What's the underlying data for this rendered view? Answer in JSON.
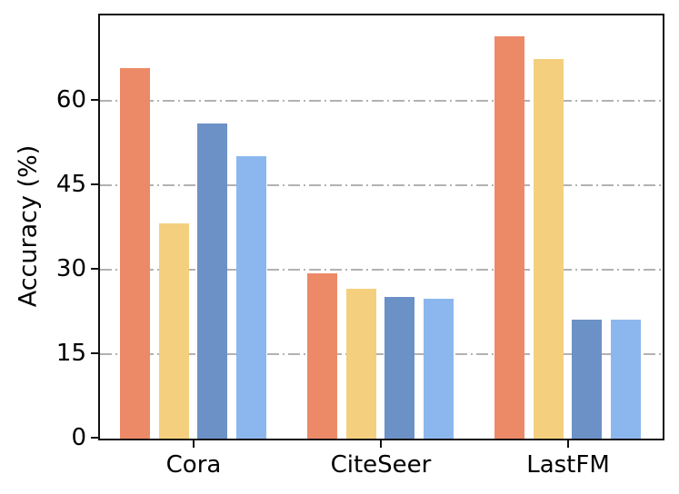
{
  "chart_data": {
    "type": "bar",
    "title": "",
    "xlabel": "",
    "ylabel": "Accuracy (%)",
    "categories": [
      "Cora",
      "CiteSeer",
      "LastFM"
    ],
    "series": [
      {
        "name": "orange",
        "color": "#EC8A67",
        "values": [
          65.8,
          29.3,
          71.3
        ]
      },
      {
        "name": "yellow",
        "color": "#F4D07E",
        "values": [
          38.2,
          26.5,
          67.4
        ]
      },
      {
        "name": "dark-blue",
        "color": "#6C91C6",
        "values": [
          55.9,
          25.1,
          21.1
        ]
      },
      {
        "name": "light-blue",
        "color": "#8CB7EE",
        "values": [
          50.1,
          24.7,
          21.0
        ]
      }
    ],
    "ylim": [
      0,
      75
    ],
    "yticks": [
      0,
      15,
      30,
      45,
      60
    ],
    "grid": {
      "on": true,
      "axis": "y",
      "style": "dash-dot",
      "color": "#B2B2B2"
    },
    "legend": "none",
    "spine_color": "#111111",
    "tick_label_color": "#000000"
  }
}
